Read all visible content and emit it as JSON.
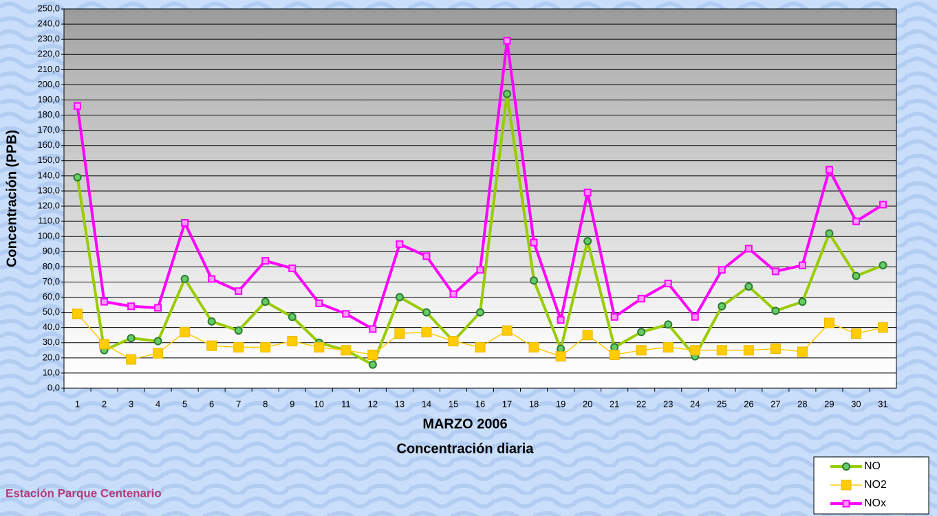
{
  "chart_data": {
    "type": "line",
    "xlabel": "MARZO 2006",
    "subtitle": "Concentración diaria",
    "ylabel": "Concentración  (PPB)",
    "annotation": "Estación Parque Centenario",
    "categories": [
      "1",
      "2",
      "3",
      "4",
      "5",
      "6",
      "7",
      "8",
      "9",
      "10",
      "11",
      "12",
      "13",
      "14",
      "15",
      "16",
      "17",
      "18",
      "19",
      "20",
      "21",
      "22",
      "23",
      "24",
      "25",
      "26",
      "27",
      "28",
      "29",
      "30",
      "31"
    ],
    "series": [
      {
        "name": "NO",
        "color": "#99cc00",
        "marker": "circle",
        "values": [
          139,
          25,
          33,
          31,
          72,
          44,
          38,
          57,
          47,
          30,
          25,
          15.5,
          60,
          50,
          31,
          50,
          194,
          71,
          26,
          97,
          27,
          37,
          42,
          21,
          54,
          67,
          51,
          57,
          102,
          74,
          81
        ]
      },
      {
        "name": "NO2",
        "color": "#ffcc00",
        "marker": "square",
        "values": [
          49,
          29,
          19,
          23,
          37,
          28,
          27,
          27,
          31,
          27,
          25,
          22,
          36,
          37,
          31,
          27,
          38,
          27,
          21,
          35,
          22,
          25,
          27,
          25,
          25,
          25,
          26,
          24,
          43,
          36,
          40
        ]
      },
      {
        "name": "NOx",
        "color": "#ff00ff",
        "marker": "small-square",
        "values": [
          186,
          57,
          54,
          53,
          109,
          72,
          64,
          84,
          79,
          56,
          49,
          39,
          95,
          87,
          62,
          78,
          229,
          96,
          45,
          129,
          47,
          59,
          69,
          47,
          78,
          92,
          77,
          81,
          144,
          110,
          121
        ]
      }
    ],
    "ylim": [
      0,
      250
    ],
    "yticks": [
      {
        "value": 0,
        "label": "0,0"
      },
      {
        "value": 10,
        "label": "10,0"
      },
      {
        "value": 20,
        "label": "20,0"
      },
      {
        "value": 30,
        "label": "30,0"
      },
      {
        "value": 40,
        "label": "40,0"
      },
      {
        "value": 50,
        "label": "50,0"
      },
      {
        "value": 60,
        "label": "60,0"
      },
      {
        "value": 70,
        "label": "70,0"
      },
      {
        "value": 80,
        "label": "80,0"
      },
      {
        "value": 90,
        "label": "90,0"
      },
      {
        "value": 100,
        "label": "100,0"
      },
      {
        "value": 110,
        "label": "110,0"
      },
      {
        "value": 120,
        "label": "120,0"
      },
      {
        "value": 130,
        "label": "130,0"
      },
      {
        "value": 140,
        "label": "140,0"
      },
      {
        "value": 150,
        "label": "150,0"
      },
      {
        "value": 160,
        "label": "160,0"
      },
      {
        "value": 170,
        "label": "170,0"
      },
      {
        "value": 180,
        "label": "180,0"
      },
      {
        "value": 190,
        "label": "190,0"
      },
      {
        "value": 200,
        "label": "200,0"
      },
      {
        "value": 210,
        "label": "210,0"
      },
      {
        "value": 220,
        "label": "220,0"
      },
      {
        "value": 230,
        "label": "230,0"
      },
      {
        "value": 240,
        "label": "240,0"
      },
      {
        "value": 250,
        "label": "250,0"
      }
    ],
    "grid": true,
    "legend": "bottom-right"
  }
}
